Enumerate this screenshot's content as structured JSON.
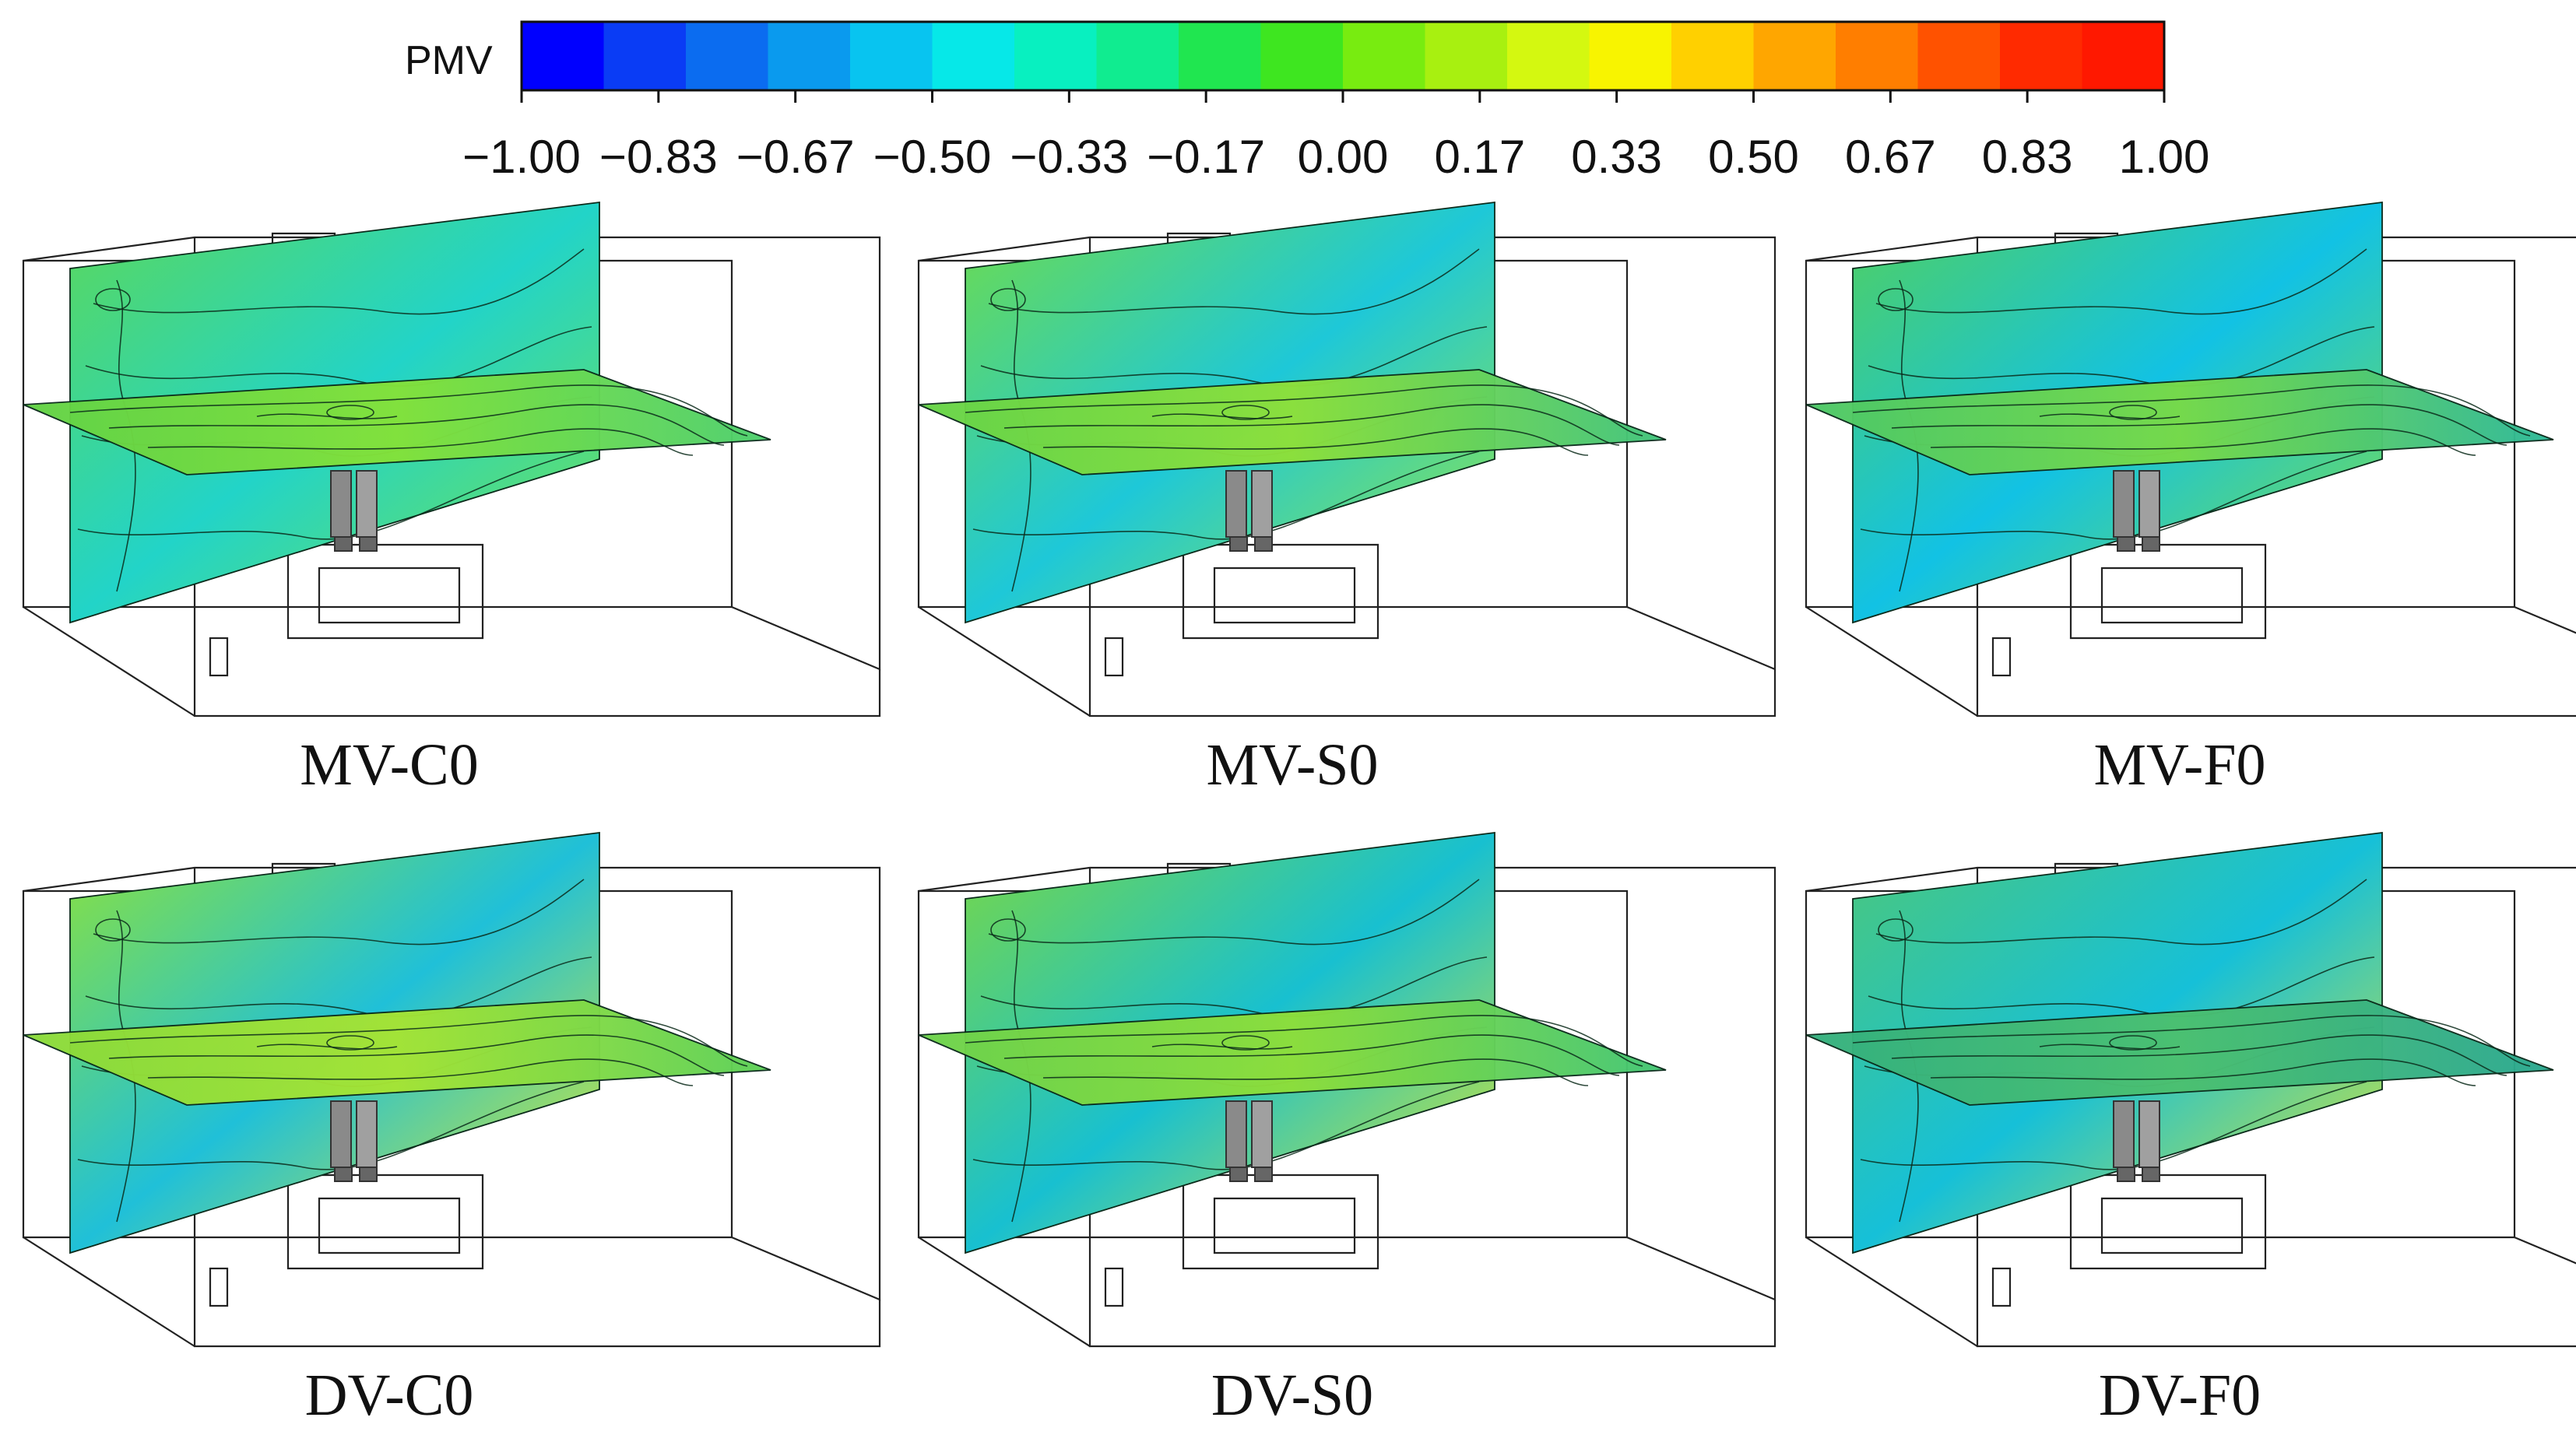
{
  "colorbar": {
    "title": "PMV",
    "tick_labels": [
      "−1.00",
      "−0.83",
      "−0.67",
      "−0.50",
      "−0.33",
      "−0.17",
      "0.00",
      "0.17",
      "0.33",
      "0.50",
      "0.67",
      "0.83",
      "1.00"
    ],
    "colors": [
      "#0000ff",
      "#0a3cf5",
      "#0b6cf0",
      "#0a9aee",
      "#08c4f0",
      "#06e8e8",
      "#08f0c0",
      "#10ec90",
      "#20e650",
      "#3ee620",
      "#78ec10",
      "#a8f010",
      "#d4f810",
      "#f8f400",
      "#ffd000",
      "#ffa600",
      "#ff7e00",
      "#ff5200",
      "#ff2a00",
      "#ff1800"
    ]
  },
  "panels": [
    {
      "label": "MV-C0",
      "wall_colors": [
        "#5cd85a",
        "#22d4c8",
        "#78e24a"
      ],
      "floor_colors": [
        "#62d246",
        "#84e23a",
        "#4ccf6e"
      ]
    },
    {
      "label": "MV-S0",
      "wall_colors": [
        "#70dc4a",
        "#1ec8d8",
        "#9ce83a"
      ],
      "floor_colors": [
        "#66d448",
        "#8ee03a",
        "#40c47c"
      ]
    },
    {
      "label": "MV-F0",
      "wall_colors": [
        "#52d05e",
        "#12c2e4",
        "#84e03e"
      ],
      "floor_colors": [
        "#4cc868",
        "#78da48",
        "#2cb898"
      ]
    },
    {
      "label": "DV-C0",
      "wall_colors": [
        "#8ee23a",
        "#20c0d8",
        "#e8ec20"
      ],
      "floor_colors": [
        "#8ada3a",
        "#a6e434",
        "#5cd058"
      ]
    },
    {
      "label": "DV-S0",
      "wall_colors": [
        "#7ad844",
        "#18c0d0",
        "#e6ea22"
      ],
      "floor_colors": [
        "#6cd24c",
        "#8ede3a",
        "#42c674"
      ]
    },
    {
      "label": "DV-F0",
      "wall_colors": [
        "#4cc87a",
        "#16c0d8",
        "#e8e828"
      ],
      "floor_colors": [
        "#34b07e",
        "#4cc070",
        "#2aa890"
      ]
    }
  ]
}
